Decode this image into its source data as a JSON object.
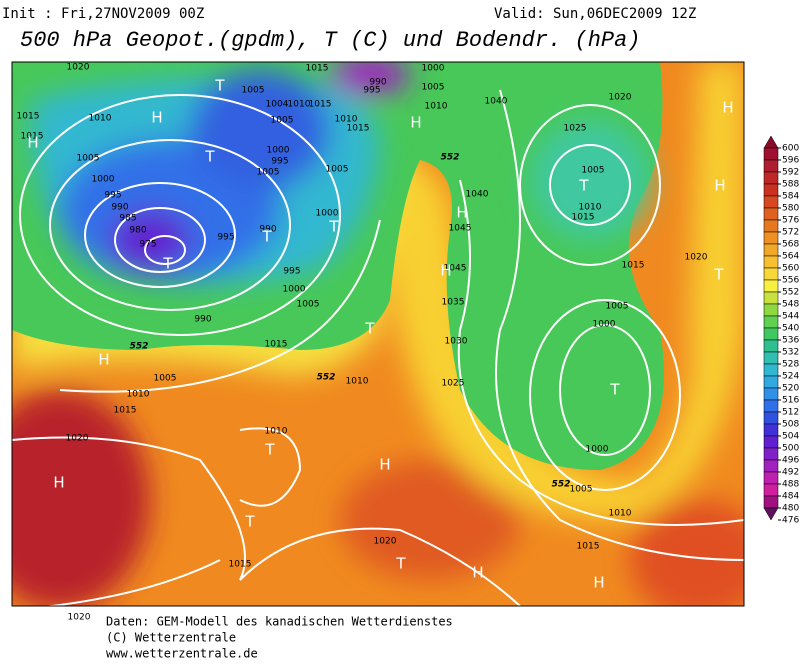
{
  "header": {
    "init": "Init : Fri,27NOV2009 00Z",
    "valid": "Valid: Sun,06DEC2009 12Z",
    "title": "500 hPa Geopot.(gpdm), T (C) und Bodendr. (hPa)"
  },
  "colorbar": {
    "ticks": [
      600,
      596,
      592,
      588,
      584,
      580,
      576,
      572,
      568,
      564,
      560,
      556,
      552,
      548,
      544,
      540,
      536,
      532,
      528,
      524,
      520,
      516,
      512,
      508,
      504,
      500,
      496,
      492,
      488,
      484,
      480,
      476
    ],
    "colors": [
      "#8b0a2a",
      "#a01030",
      "#b01c30",
      "#c02828",
      "#cc3020",
      "#d84820",
      "#e06020",
      "#e87820",
      "#f09020",
      "#f0a828",
      "#f8c030",
      "#f8d838",
      "#f8f040",
      "#c8e040",
      "#90d840",
      "#60d050",
      "#40c860",
      "#30c090",
      "#30c0b0",
      "#30b8d0",
      "#30a8e0",
      "#3090e8",
      "#3070e8",
      "#3050e0",
      "#4030d8",
      "#6020d0",
      "#8020c8",
      "#a020c0",
      "#c020b0",
      "#d020a0",
      "#a01080",
      "#601060"
    ]
  },
  "map": {
    "isobar_labels": [
      "1020",
      "1015",
      "1015",
      "1010",
      "1005",
      "1000",
      "995",
      "990",
      "985",
      "980",
      "975",
      "995",
      "990",
      "995",
      "1000",
      "1005",
      "990",
      "1015",
      "1005",
      "1010",
      "1015",
      "1020",
      "1010",
      "1010",
      "1015",
      "1020",
      "1020",
      "1005",
      "1005",
      "1004",
      "1010",
      "1015",
      "1015",
      "1010",
      "1015",
      "1000",
      "995",
      "1005",
      "1005",
      "1000",
      "990",
      "995",
      "1000",
      "1005",
      "1010",
      "1040",
      "1020",
      "1025",
      "1005",
      "1010",
      "1015",
      "1040",
      "1045",
      "1045",
      "1035",
      "1030",
      "1025",
      "1015",
      "1020",
      "1005",
      "1000",
      "1000",
      "1005",
      "1010",
      "1015"
    ],
    "geopotential_labels": [
      "552",
      "552",
      "552",
      "552"
    ],
    "pressure_centers": [
      "H",
      "H",
      "T",
      "T",
      "H",
      "H",
      "H",
      "T",
      "H",
      "H",
      "T",
      "T",
      "T",
      "T",
      "T",
      "H",
      "T",
      "T",
      "H",
      "T",
      "T",
      "H",
      "H",
      "H"
    ]
  },
  "footer": {
    "lines": [
      "Daten: GEM-Modell des kanadischen Wetterdienstes",
      "(C) Wetterzentrale",
      "www.wetterzentrale.de"
    ]
  }
}
